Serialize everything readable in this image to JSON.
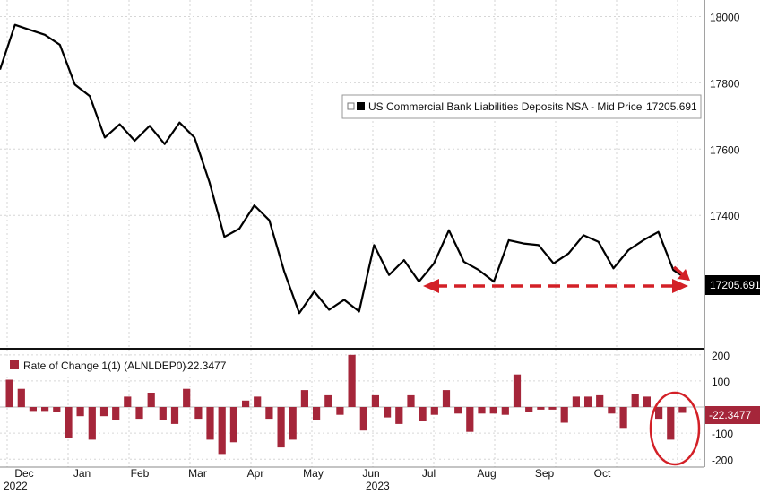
{
  "chart_data": [
    {
      "type": "line",
      "title": "",
      "legend": {
        "label": "US Commercial Bank Liabilities Deposits NSA - Mid Price",
        "last_value": "17205.691",
        "placement": "top-right"
      },
      "last_value_label": "17205.691",
      "series": [
        {
          "name": "US Commercial Bank Liabilities Deposits NSA - Mid Price",
          "color": "#000000",
          "values": [
            17840,
            17975,
            17960,
            17945,
            17915,
            17795,
            17760,
            17635,
            17675,
            17625,
            17670,
            17615,
            17680,
            17635,
            17500,
            17335,
            17360,
            17430,
            17385,
            17230,
            17105,
            17170,
            17115,
            17145,
            17110,
            17310,
            17220,
            17265,
            17200,
            17255,
            17355,
            17260,
            17235,
            17200,
            17325,
            17315,
            17310,
            17255,
            17285,
            17340,
            17320,
            17240,
            17295,
            17325,
            17350,
            17235,
            17205.691
          ]
        }
      ],
      "ylim": [
        17000,
        18050
      ],
      "yticks": [
        17400,
        17600,
        17800,
        18000
      ],
      "ytick_labels": [
        "17400",
        "17600",
        "17800",
        "18000"
      ],
      "grid": true,
      "annotations": [
        "red dashed double arrow at ~17200 from Jun to Oct",
        "red arrow pointing down-right at latest value"
      ]
    },
    {
      "type": "bar",
      "title": "",
      "legend": {
        "label": "Rate of Change 1(1) (ALNLDEP0)",
        "last_value": "-22.3477",
        "placement": "top-left"
      },
      "last_value_label": "-22.3477",
      "series": [
        {
          "name": "Rate of Change 1(1) (ALNLDEP0)",
          "color": "#a5263a",
          "values": [
            105,
            70,
            -15,
            -15,
            -20,
            -120,
            -35,
            -125,
            -35,
            -50,
            40,
            -45,
            55,
            -50,
            -65,
            70,
            -45,
            -125,
            -180,
            -135,
            25,
            40,
            -45,
            -155,
            -125,
            65,
            -50,
            45,
            -30,
            200,
            -90,
            45,
            -40,
            -65,
            45,
            -55,
            -30,
            65,
            -25,
            -95,
            -25,
            -25,
            -30,
            125,
            -20,
            -10,
            -10,
            -60,
            40,
            40,
            45,
            -25,
            -80,
            50,
            40,
            -45,
            -125,
            -22.3477
          ]
        }
      ],
      "ylim": [
        -230,
        220
      ],
      "yticks": [
        -200,
        -100,
        100,
        200
      ],
      "ytick_labels": [
        "-200",
        "-100",
        "100",
        "200"
      ],
      "grid": true,
      "annotations": [
        "red ellipse circling latest bars"
      ]
    }
  ],
  "x_axis": {
    "months": [
      "Dec",
      "Jan",
      "Feb",
      "Mar",
      "Apr",
      "May",
      "Jun",
      "Jul",
      "Aug",
      "Sep",
      "Oct"
    ],
    "years": [
      "2022",
      "2023"
    ]
  },
  "colors": {
    "price_line": "#000000",
    "bars": "#a5263a",
    "annotation": "#d32027",
    "last_box": "#000000"
  }
}
